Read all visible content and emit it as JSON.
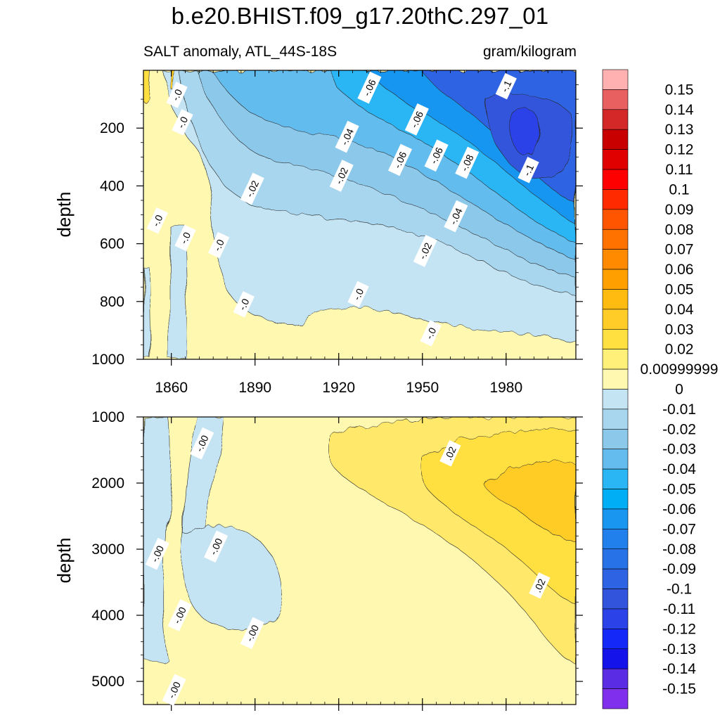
{
  "title": "b.e20.BHIST.f09_g17.20thC.297_01",
  "subtitle_left": "SALT anomaly, ATL_44S-18S",
  "subtitle_right": "gram/kilogram",
  "chart_data": [
    {
      "type": "heatmap",
      "panel": "upper",
      "xlabel": "",
      "ylabel": "depth",
      "x_ticks": [
        "1860",
        "1890",
        "1920",
        "1950",
        "1980"
      ],
      "xlim": [
        1850,
        2005
      ],
      "y_ticks": [
        "200",
        "400",
        "600",
        "800",
        "1000"
      ],
      "ylim": [
        1000,
        0
      ],
      "contour_labels": [
        {
          "text": "-.0",
          "x": 1862,
          "y": 85
        },
        {
          "text": "-.0",
          "x": 1864,
          "y": 180
        },
        {
          "text": "-.06",
          "x": 1931,
          "y": 60
        },
        {
          "text": "-.1",
          "x": 1980,
          "y": 55
        },
        {
          "text": "-.06",
          "x": 1948,
          "y": 170
        },
        {
          "text": "-.04",
          "x": 1923,
          "y": 230
        },
        {
          "text": "-.06",
          "x": 1942,
          "y": 310
        },
        {
          "text": "-.06",
          "x": 1955,
          "y": 295
        },
        {
          "text": "-.08",
          "x": 1966,
          "y": 320
        },
        {
          "text": "-.1",
          "x": 1988,
          "y": 345
        },
        {
          "text": "-.02",
          "x": 1921,
          "y": 365
        },
        {
          "text": "-.02",
          "x": 1889,
          "y": 410
        },
        {
          "text": "-.04",
          "x": 1962,
          "y": 505
        },
        {
          "text": "-.0",
          "x": 1855,
          "y": 520
        },
        {
          "text": "-.0",
          "x": 1865,
          "y": 580
        },
        {
          "text": "-.0",
          "x": 1877,
          "y": 605
        },
        {
          "text": "-.02",
          "x": 1951,
          "y": 625
        },
        {
          "text": "-.0",
          "x": 1927,
          "y": 775
        },
        {
          "text": "-.0",
          "x": 1886,
          "y": 810
        },
        {
          "text": "-.0",
          "x": 1953,
          "y": 910
        }
      ]
    },
    {
      "type": "heatmap",
      "panel": "lower",
      "xlabel": "",
      "ylabel": "depth",
      "ylim": [
        1000,
        5350
      ],
      "y_ticks": [
        "1000",
        "2000",
        "3000",
        "4000",
        "5000"
      ],
      "contour_labels": [
        {
          "text": "-.00",
          "x": 1871,
          "y": 1400
        },
        {
          "text": "-.00",
          "x": 1855,
          "y": 3070
        },
        {
          "text": "-.00",
          "x": 1876,
          "y": 2960
        },
        {
          "text": "-.00",
          "x": 1863,
          "y": 4000
        },
        {
          "text": "-.00",
          "x": 1889,
          "y": 4270
        },
        {
          "text": ".02",
          "x": 1960,
          "y": 1550
        },
        {
          "text": ".02",
          "x": 1992,
          "y": 3550
        },
        {
          "text": "-.00",
          "x": 1861,
          "y": 5130
        }
      ]
    }
  ],
  "colorbar": {
    "labels": [
      "0.15",
      "0.14",
      "0.13",
      "0.12",
      "0.11",
      "0.1",
      "0.09",
      "0.08",
      "0.07",
      "0.06",
      "0.05",
      "0.04",
      "0.03",
      "0.02",
      "0.00999999",
      "0",
      "-0.01",
      "-0.02",
      "-0.03",
      "-0.04",
      "-0.05",
      "-0.06",
      "-0.07",
      "-0.08",
      "-0.09",
      "-0.1",
      "-0.11",
      "-0.12",
      "-0.13",
      "-0.14",
      "-0.15"
    ],
    "colors": [
      "#ffb0b0",
      "#e86060",
      "#d42828",
      "#c80000",
      "#e00000",
      "#ff0000",
      "#ff2a00",
      "#ff5500",
      "#ff7200",
      "#ff8a00",
      "#ffa000",
      "#ffbb10",
      "#ffcc28",
      "#ffe040",
      "#fff07a",
      "#fff8b0",
      "#c4e4f4",
      "#a8d6ee",
      "#8cc8ea",
      "#64bcee",
      "#2ab6f4",
      "#00aef6",
      "#1896f0",
      "#2280ec",
      "#2872e8",
      "#2e64e4",
      "#3254dc",
      "#2a42e8",
      "#1428f8",
      "#1414ea",
      "#5a2ce4",
      "#8030ec"
    ]
  }
}
